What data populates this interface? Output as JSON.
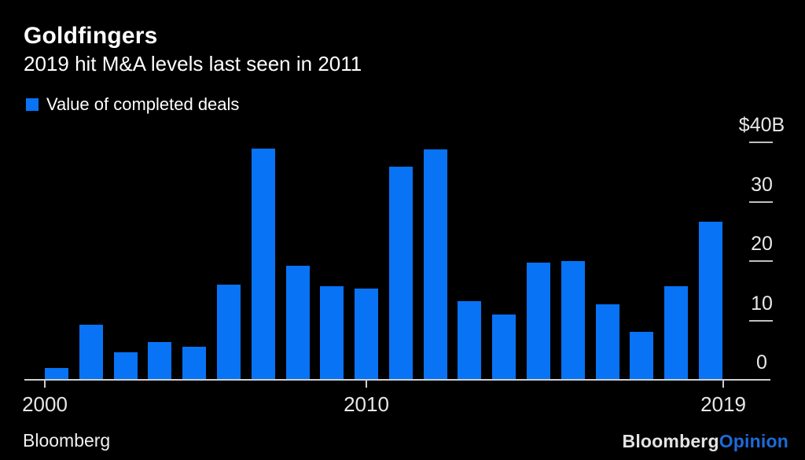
{
  "page": {
    "background": "#000000"
  },
  "header": {
    "title": "Goldfingers",
    "subtitle": "2019 hit M&A levels last seen in 2011"
  },
  "legend": {
    "label": "Value of completed deals",
    "swatch_color": "#0873f5"
  },
  "chart_data": {
    "type": "bar",
    "title": "Goldfingers",
    "subtitle": "2019 hit M&A levels last seen in 2011",
    "categories": [
      2000,
      2001,
      2002,
      2003,
      2004,
      2005,
      2006,
      2007,
      2008,
      2009,
      2010,
      2011,
      2012,
      2013,
      2014,
      2015,
      2016,
      2017,
      2018,
      2019
    ],
    "series": [
      {
        "name": "Value of completed deals",
        "values": [
          2.0,
          9.3,
          4.6,
          6.4,
          5.6,
          16.0,
          38.9,
          19.2,
          15.7,
          15.3,
          35.9,
          38.8,
          13.3,
          11.0,
          19.7,
          20.0,
          12.7,
          8.1,
          15.8,
          26.6
        ]
      }
    ],
    "xlabel": "",
    "ylabel": "$B",
    "ylim": [
      0,
      40
    ],
    "grid": false,
    "legend_position": "top-left",
    "y_axis_side": "right",
    "y_ticks": [
      {
        "label": "$40B",
        "value": 40
      },
      {
        "label": "30",
        "value": 30
      },
      {
        "label": "20",
        "value": 20
      },
      {
        "label": "10",
        "value": 10
      },
      {
        "label": "0",
        "value": 0
      }
    ],
    "x_ticks": [
      {
        "label": "2000"
      },
      {
        "label": "2010"
      },
      {
        "label": "2019"
      }
    ],
    "bar_color": "#0873f5",
    "axis_line_color": "#cfcfcf",
    "axis_text_color": "#e8e8e8"
  },
  "footer": {
    "source": "Bloomberg",
    "brand_white": "Bloomberg",
    "brand_blue": "Opinion"
  }
}
